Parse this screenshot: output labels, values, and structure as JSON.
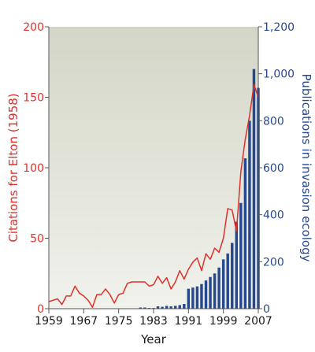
{
  "chart_data": {
    "type": "bar",
    "xlabel": "Year",
    "ylabel_left": "Citations for Elton (1958)",
    "ylabel_right": "Publications in invasion ecology",
    "xlim": [
      1959,
      2007
    ],
    "ylim_left": [
      0,
      200
    ],
    "ylim_right": [
      0,
      1200
    ],
    "x_ticks": [
      "1959",
      "1967",
      "1975",
      "1983",
      "1991",
      "1999",
      "2007"
    ],
    "y_ticks_left": [
      "0",
      "50",
      "100",
      "150",
      "200"
    ],
    "y_ticks_right": [
      "0",
      "200",
      "400",
      "600",
      "800",
      "1,000",
      "1,200"
    ],
    "grid": false,
    "colors": {
      "citations": "#e0302a",
      "publications": "#26488f",
      "plot_bg_top": "#d3d6c7",
      "plot_bg_bottom": "#f1f2ec"
    },
    "series": [
      {
        "type": "line",
        "axis": "left",
        "x": [
          1959,
          1960,
          1961,
          1962,
          1963,
          1964,
          1965,
          1966,
          1967,
          1968,
          1969,
          1970,
          1971,
          1972,
          1973,
          1974,
          1975,
          1976,
          1977,
          1978,
          1979,
          1980,
          1981,
          1982,
          1983,
          1984,
          1985,
          1986,
          1987,
          1988,
          1989,
          1990,
          1991,
          1992,
          1993,
          1994,
          1995,
          1996,
          1997,
          1998,
          1999,
          2000,
          2001,
          2002,
          2003,
          2004,
          2005,
          2006,
          2007
        ],
        "values": [
          5,
          6,
          7,
          3,
          9,
          9,
          16,
          11,
          9,
          6,
          1,
          10,
          10,
          14,
          10,
          4,
          10,
          11,
          18,
          19,
          19,
          19,
          19,
          16,
          17,
          23,
          18,
          22,
          14,
          19,
          27,
          21,
          28,
          33,
          36,
          27,
          39,
          35,
          43,
          40,
          50,
          71,
          70,
          55,
          97,
          120,
          137,
          159,
          150
        ]
      },
      {
        "type": "bar",
        "axis": "right",
        "x": [
          1959,
          1960,
          1961,
          1962,
          1963,
          1964,
          1965,
          1966,
          1967,
          1968,
          1969,
          1970,
          1971,
          1972,
          1973,
          1974,
          1975,
          1976,
          1977,
          1978,
          1979,
          1980,
          1981,
          1982,
          1983,
          1984,
          1985,
          1986,
          1987,
          1988,
          1989,
          1990,
          1991,
          1992,
          1993,
          1994,
          1995,
          1996,
          1997,
          1998,
          1999,
          2000,
          2001,
          2002,
          2003,
          2004,
          2005,
          2006,
          2007
        ],
        "values": [
          0,
          0,
          0,
          0,
          0,
          0,
          0,
          0,
          0,
          0,
          0,
          0,
          0,
          0,
          0,
          0,
          0,
          0,
          0,
          0,
          0,
          5,
          5,
          3,
          3,
          10,
          8,
          12,
          10,
          12,
          15,
          20,
          85,
          90,
          95,
          105,
          120,
          135,
          150,
          175,
          210,
          235,
          280,
          370,
          450,
          640,
          800,
          1020,
          940
        ]
      }
    ]
  }
}
